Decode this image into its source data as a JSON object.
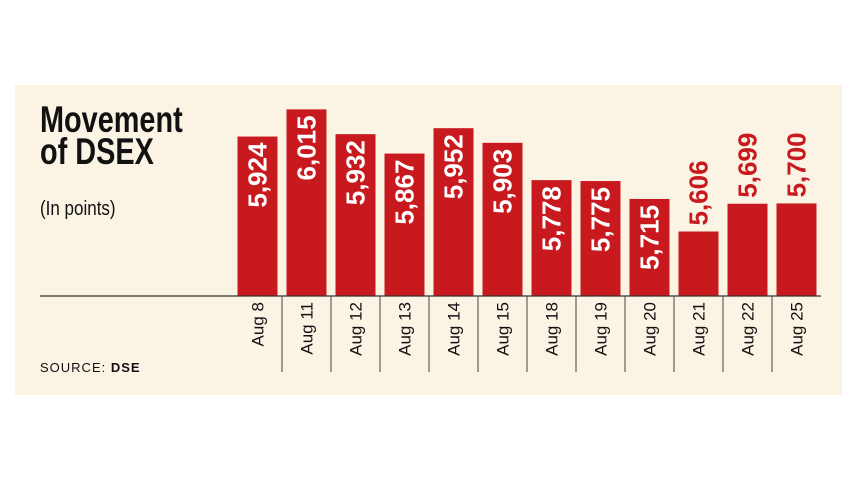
{
  "chart_data": {
    "type": "bar",
    "title": "Movement of DSEX",
    "subtitle": "(In points)",
    "source_label": "SOURCE:",
    "source": "DSE",
    "categories": [
      "Aug 8",
      "Aug 11",
      "Aug 12",
      "Aug 13",
      "Aug 14",
      "Aug 15",
      "Aug 18",
      "Aug 19",
      "Aug 20",
      "Aug 21",
      "Aug 22",
      "Aug 25"
    ],
    "values": [
      5924,
      6015,
      5932,
      5867,
      5952,
      5903,
      5778,
      5775,
      5715,
      5606,
      5699,
      5700
    ],
    "value_labels": [
      "5,924",
      "6,015",
      "5,932",
      "5,867",
      "5,952",
      "5,903",
      "5,778",
      "5,775",
      "5,715",
      "5,606",
      "5,699",
      "5,700"
    ],
    "color": "#c8191e",
    "ylim": [
      5390,
      6100
    ]
  }
}
